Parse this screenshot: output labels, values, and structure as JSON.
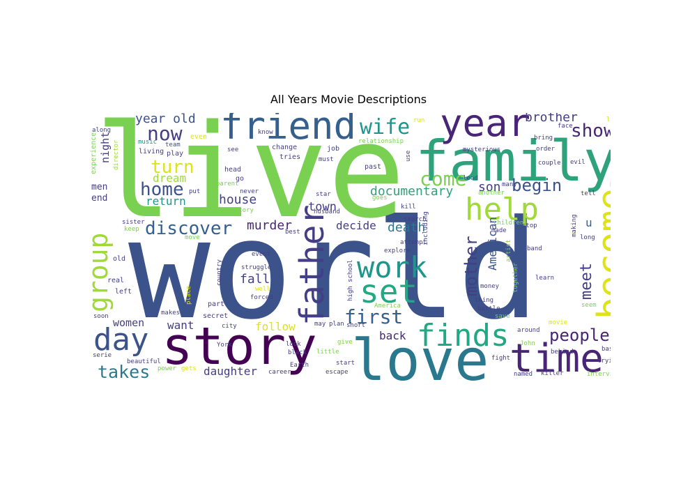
{
  "title": "All Years Movie Descriptions",
  "palette": {
    "green": "#7ad151",
    "lime": "#a0da39",
    "yellow": "#dde318",
    "teal": "#22a884",
    "seagreen": "#2ea37b",
    "cyan": "#1f968b",
    "blue": "#2a788e",
    "steel": "#355f8d",
    "navy": "#3b528b",
    "indigo": "#433e85",
    "purple": "#482576",
    "violet": "#440154"
  },
  "words": [
    {
      "text": "world",
      "rank": 1,
      "color": "navy",
      "orientation": "horizontal"
    },
    {
      "text": "live",
      "rank": 2,
      "color": "green",
      "orientation": "horizontal"
    },
    {
      "text": "love",
      "rank": 3,
      "color": "blue",
      "orientation": "horizontal"
    },
    {
      "text": "family",
      "rank": 4,
      "color": "seagreen",
      "orientation": "horizontal"
    },
    {
      "text": "story",
      "rank": 5,
      "color": "violet",
      "orientation": "horizontal"
    },
    {
      "text": "friend",
      "rank": 6,
      "color": "steel",
      "orientation": "horizontal"
    },
    {
      "text": "time",
      "rank": 7,
      "color": "purple",
      "orientation": "horizontal"
    },
    {
      "text": "year",
      "rank": 8,
      "color": "purple",
      "orientation": "horizontal"
    },
    {
      "text": "father",
      "rank": 9,
      "color": "indigo",
      "orientation": "vertical"
    },
    {
      "text": "become",
      "rank": 10,
      "color": "yellow",
      "orientation": "vertical"
    },
    {
      "text": "help",
      "rank": 11,
      "color": "lime",
      "orientation": "horizontal"
    },
    {
      "text": "finds",
      "rank": 12,
      "color": "teal",
      "orientation": "horizontal"
    },
    {
      "text": "work",
      "rank": 13,
      "color": "cyan",
      "orientation": "horizontal"
    },
    {
      "text": "set",
      "rank": 14,
      "color": "teal",
      "orientation": "horizontal"
    },
    {
      "text": "day",
      "rank": 15,
      "color": "navy",
      "orientation": "horizontal"
    },
    {
      "text": "group",
      "rank": 16,
      "color": "lime",
      "orientation": "vertical"
    },
    {
      "text": "people",
      "rank": 17,
      "color": "purple",
      "orientation": "horizontal"
    },
    {
      "text": "takes",
      "rank": 18,
      "color": "blue",
      "orientation": "horizontal"
    },
    {
      "text": "discover",
      "rank": 19,
      "color": "steel",
      "orientation": "horizontal"
    },
    {
      "text": "home",
      "rank": 20,
      "color": "navy",
      "orientation": "horizontal"
    },
    {
      "text": "first",
      "rank": 21,
      "color": "steel",
      "orientation": "horizontal"
    },
    {
      "text": "show",
      "rank": 22,
      "color": "purple",
      "orientation": "horizontal"
    },
    {
      "text": "wife",
      "rank": 23,
      "color": "cyan",
      "orientation": "horizontal"
    },
    {
      "text": "now",
      "rank": 24,
      "color": "indigo",
      "orientation": "horizontal"
    },
    {
      "text": "turn",
      "rank": 25,
      "color": "yellow",
      "orientation": "horizontal"
    },
    {
      "text": "mother",
      "rank": 26,
      "color": "indigo",
      "orientation": "vertical"
    },
    {
      "text": "come",
      "rank": 27,
      "color": "green",
      "orientation": "horizontal"
    },
    {
      "text": "begin",
      "rank": 28,
      "color": "navy",
      "orientation": "horizontal"
    },
    {
      "text": "meet",
      "rank": 29,
      "color": "indigo",
      "orientation": "vertical"
    },
    {
      "text": "documentary",
      "rank": 30,
      "color": "seagreen",
      "orientation": "horizontal"
    },
    {
      "text": "brother",
      "rank": 31,
      "color": "indigo",
      "orientation": "horizontal"
    },
    {
      "text": "year old",
      "rank": 32,
      "color": "navy",
      "orientation": "horizontal"
    },
    {
      "text": "son",
      "rank": 33,
      "color": "indigo",
      "orientation": "horizontal"
    },
    {
      "text": "murder",
      "rank": 34,
      "color": "purple",
      "orientation": "horizontal"
    },
    {
      "text": "death",
      "rank": 35,
      "color": "blue",
      "orientation": "horizontal"
    },
    {
      "text": "decide",
      "rank": 36,
      "color": "indigo",
      "orientation": "horizontal"
    },
    {
      "text": "house",
      "rank": 37,
      "color": "indigo",
      "orientation": "horizontal"
    },
    {
      "text": "dream",
      "rank": 38,
      "color": "lime",
      "orientation": "horizontal"
    },
    {
      "text": "return",
      "rank": 39,
      "color": "cyan",
      "orientation": "horizontal"
    },
    {
      "text": "town",
      "rank": 40,
      "color": "indigo",
      "orientation": "horizontal"
    },
    {
      "text": "fall",
      "rank": 41,
      "color": "indigo",
      "orientation": "horizontal"
    },
    {
      "text": "women",
      "rank": 42,
      "color": "indigo",
      "orientation": "horizontal"
    },
    {
      "text": "want",
      "rank": 43,
      "color": "indigo",
      "orientation": "horizontal"
    },
    {
      "text": "follow",
      "rank": 44,
      "color": "yellow",
      "orientation": "horizontal"
    },
    {
      "text": "back",
      "rank": 45,
      "color": "purple",
      "orientation": "horizontal"
    },
    {
      "text": "daughter",
      "rank": 46,
      "color": "indigo",
      "orientation": "horizontal"
    },
    {
      "text": "American",
      "rank": 47,
      "color": "navy",
      "orientation": "vertical"
    },
    {
      "text": "night",
      "rank": 48,
      "color": "indigo",
      "orientation": "vertical"
    },
    {
      "text": "men",
      "rank": 49,
      "color": "indigo",
      "orientation": "horizontal"
    },
    {
      "text": "end",
      "rank": 50,
      "color": "indigo",
      "orientation": "horizontal"
    },
    {
      "text": "u",
      "rank": 51,
      "color": "steel",
      "orientation": "horizontal"
    },
    {
      "text": "along",
      "rank": 52,
      "color": "indigo",
      "orientation": "horizontal"
    },
    {
      "text": "music",
      "rank": 53,
      "color": "cyan",
      "orientation": "horizontal"
    },
    {
      "text": "team",
      "rank": 54,
      "color": "navy",
      "orientation": "horizontal"
    },
    {
      "text": "living",
      "rank": 55,
      "color": "indigo",
      "orientation": "horizontal"
    },
    {
      "text": "play",
      "rank": 56,
      "color": "indigo",
      "orientation": "horizontal"
    },
    {
      "text": "experience",
      "rank": 57,
      "color": "green",
      "orientation": "vertical"
    },
    {
      "text": "director",
      "rank": 58,
      "color": "lime",
      "orientation": "vertical"
    },
    {
      "text": "even",
      "rank": 59,
      "color": "yellow",
      "orientation": "horizontal"
    },
    {
      "text": "know",
      "rank": 60,
      "color": "indigo",
      "orientation": "horizontal"
    },
    {
      "text": "relationship",
      "rank": 61,
      "color": "green",
      "orientation": "horizontal"
    },
    {
      "text": "run",
      "rank": 62,
      "color": "yellow",
      "orientation": "horizontal"
    },
    {
      "text": "change",
      "rank": 63,
      "color": "indigo",
      "orientation": "horizontal"
    },
    {
      "text": "tries",
      "rank": 64,
      "color": "indigo",
      "orientation": "horizontal"
    },
    {
      "text": "job",
      "rank": 65,
      "color": "indigo",
      "orientation": "horizontal"
    },
    {
      "text": "must",
      "rank": 66,
      "color": "indigo",
      "orientation": "horizontal"
    },
    {
      "text": "see",
      "rank": 67,
      "color": "indigo",
      "orientation": "horizontal"
    },
    {
      "text": "head",
      "rank": 68,
      "color": "indigo",
      "orientation": "horizontal"
    },
    {
      "text": "go",
      "rank": 69,
      "color": "indigo",
      "orientation": "horizontal"
    },
    {
      "text": "past",
      "rank": 70,
      "color": "indigo",
      "orientation": "horizontal"
    },
    {
      "text": "use",
      "rank": 71,
      "color": "indigo",
      "orientation": "vertical"
    },
    {
      "text": "lead",
      "rank": 72,
      "color": "indigo",
      "orientation": "horizontal"
    },
    {
      "text": "mysterious",
      "rank": 73,
      "color": "indigo",
      "orientation": "horizontal"
    },
    {
      "text": "face",
      "rank": 74,
      "color": "indigo",
      "orientation": "horizontal"
    },
    {
      "text": "leave",
      "rank": 75,
      "color": "yellow",
      "orientation": "horizontal"
    },
    {
      "text": "bring",
      "rank": 76,
      "color": "indigo",
      "orientation": "horizontal"
    },
    {
      "text": "order",
      "rank": 77,
      "color": "indigo",
      "orientation": "horizontal"
    },
    {
      "text": "couple",
      "rank": 78,
      "color": "indigo",
      "orientation": "horizontal"
    },
    {
      "text": "evil",
      "rank": 79,
      "color": "indigo",
      "orientation": "horizontal"
    },
    {
      "text": "tell",
      "rank": 80,
      "color": "indigo",
      "orientation": "horizontal"
    },
    {
      "text": "hope",
      "rank": 81,
      "color": "indigo",
      "orientation": "horizontal"
    },
    {
      "text": "many",
      "rank": 82,
      "color": "indigo",
      "orientation": "horizontal"
    },
    {
      "text": "another",
      "rank": 83,
      "color": "green",
      "orientation": "horizontal"
    },
    {
      "text": "put",
      "rank": 84,
      "color": "indigo",
      "orientation": "horizontal"
    },
    {
      "text": "parent",
      "rank": 85,
      "color": "green",
      "orientation": "horizontal"
    },
    {
      "text": "never",
      "rank": 86,
      "color": "indigo",
      "orientation": "horizontal"
    },
    {
      "text": "star",
      "rank": 87,
      "color": "indigo",
      "orientation": "horizontal"
    },
    {
      "text": "goes",
      "rank": 88,
      "color": "green",
      "orientation": "horizontal"
    },
    {
      "text": "history",
      "rank": 89,
      "color": "green",
      "orientation": "horizontal"
    },
    {
      "text": "husband",
      "rank": 90,
      "color": "indigo",
      "orientation": "horizontal"
    },
    {
      "text": "kill",
      "rank": 91,
      "color": "indigo",
      "orientation": "horizontal"
    },
    {
      "text": "sister",
      "rank": 92,
      "color": "indigo",
      "orientation": "horizontal"
    },
    {
      "text": "keep",
      "rank": 93,
      "color": "green",
      "orientation": "horizontal"
    },
    {
      "text": "best",
      "rank": 94,
      "color": "indigo",
      "orientation": "horizontal"
    },
    {
      "text": "move",
      "rank": 95,
      "color": "green",
      "orientation": "horizontal"
    },
    {
      "text": "including",
      "rank": 96,
      "color": "indigo",
      "orientation": "vertical"
    },
    {
      "text": "made",
      "rank": 97,
      "color": "indigo",
      "orientation": "horizontal"
    },
    {
      "text": "children",
      "rank": 98,
      "color": "green",
      "orientation": "horizontal"
    },
    {
      "text": "stop",
      "rank": 99,
      "color": "indigo",
      "orientation": "horizontal"
    },
    {
      "text": "making",
      "rank": 100,
      "color": "indigo",
      "orientation": "vertical"
    },
    {
      "text": "adventure",
      "rank": 101,
      "color": "lime",
      "orientation": "vertical"
    },
    {
      "text": "search",
      "rank": 102,
      "color": "indigo",
      "orientation": "horizontal"
    },
    {
      "text": "attempt",
      "rank": 103,
      "color": "indigo",
      "orientation": "horizontal"
    },
    {
      "text": "explore",
      "rank": 104,
      "color": "indigo",
      "orientation": "horizontal"
    },
    {
      "text": "event",
      "rank": 105,
      "color": "indigo",
      "orientation": "horizontal"
    },
    {
      "text": "struggle",
      "rank": 106,
      "color": "indigo",
      "orientation": "horizontal"
    },
    {
      "text": "well",
      "rank": 107,
      "color": "yellow",
      "orientation": "horizontal"
    },
    {
      "text": "forced",
      "rank": 108,
      "color": "indigo",
      "orientation": "horizontal"
    },
    {
      "text": "country",
      "rank": 109,
      "color": "indigo",
      "orientation": "vertical"
    },
    {
      "text": "old",
      "rank": 110,
      "color": "indigo",
      "orientation": "horizontal"
    },
    {
      "text": "real",
      "rank": 111,
      "color": "indigo",
      "orientation": "horizontal"
    },
    {
      "text": "left",
      "rank": 112,
      "color": "indigo",
      "orientation": "horizontal"
    },
    {
      "text": "soon",
      "rank": 113,
      "color": "indigo",
      "orientation": "horizontal"
    },
    {
      "text": "makes",
      "rank": 114,
      "color": "indigo",
      "orientation": "horizontal"
    },
    {
      "text": "place",
      "rank": 115,
      "color": "yellow",
      "orientation": "vertical"
    },
    {
      "text": "part",
      "rank": 116,
      "color": "indigo",
      "orientation": "horizontal"
    },
    {
      "text": "secret",
      "rank": 117,
      "color": "indigo",
      "orientation": "horizontal"
    },
    {
      "text": "city",
      "rank": 118,
      "color": "indigo",
      "orientation": "horizontal"
    },
    {
      "text": "high school",
      "rank": 119,
      "color": "indigo",
      "orientation": "vertical"
    },
    {
      "text": "America",
      "rank": 120,
      "color": "green",
      "orientation": "horizontal"
    },
    {
      "text": "may",
      "rank": 121,
      "color": "indigo",
      "orientation": "horizontal"
    },
    {
      "text": "plan",
      "rank": 122,
      "color": "indigo",
      "orientation": "horizontal"
    },
    {
      "text": "short",
      "rank": 123,
      "color": "indigo",
      "orientation": "horizontal"
    },
    {
      "text": "give",
      "rank": 124,
      "color": "green",
      "orientation": "horizontal"
    },
    {
      "text": "look",
      "rank": 125,
      "color": "indigo",
      "orientation": "horizontal"
    },
    {
      "text": "black",
      "rank": 126,
      "color": "indigo",
      "orientation": "horizontal"
    },
    {
      "text": "little",
      "rank": 127,
      "color": "green",
      "orientation": "horizontal"
    },
    {
      "text": "start",
      "rank": 128,
      "color": "indigo",
      "orientation": "horizontal"
    },
    {
      "text": "escape",
      "rank": 129,
      "color": "indigo",
      "orientation": "horizontal"
    },
    {
      "text": "Earth",
      "rank": 130,
      "color": "indigo",
      "orientation": "horizontal"
    },
    {
      "text": "career",
      "rank": 131,
      "color": "indigo",
      "orientation": "horizontal"
    },
    {
      "text": "York",
      "rank": 132,
      "color": "indigo",
      "orientation": "horizontal"
    },
    {
      "text": "artist",
      "rank": 133,
      "color": "green",
      "orientation": "vertical"
    },
    {
      "text": "money",
      "rank": 134,
      "color": "indigo",
      "orientation": "horizontal"
    },
    {
      "text": "thing",
      "rank": 135,
      "color": "indigo",
      "orientation": "horizontal"
    },
    {
      "text": "battle",
      "rank": 136,
      "color": "indigo",
      "orientation": "horizontal"
    },
    {
      "text": "save",
      "rank": 137,
      "color": "green",
      "orientation": "horizontal"
    },
    {
      "text": "together",
      "rank": 138,
      "color": "green",
      "orientation": "vertical"
    },
    {
      "text": "learn",
      "rank": 139,
      "color": "indigo",
      "orientation": "horizontal"
    },
    {
      "text": "band",
      "rank": 140,
      "color": "indigo",
      "orientation": "horizontal"
    },
    {
      "text": "long",
      "rank": 141,
      "color": "indigo",
      "orientation": "horizontal"
    },
    {
      "text": "seem",
      "rank": 142,
      "color": "green",
      "orientation": "horizontal"
    },
    {
      "text": "movie",
      "rank": 143,
      "color": "yellow",
      "orientation": "horizontal"
    },
    {
      "text": "around",
      "rank": 144,
      "color": "indigo",
      "orientation": "horizontal"
    },
    {
      "text": "John",
      "rank": 145,
      "color": "green",
      "orientation": "horizontal"
    },
    {
      "text": "behind",
      "rank": 146,
      "color": "indigo",
      "orientation": "horizontal"
    },
    {
      "text": "based",
      "rank": 147,
      "color": "indigo",
      "orientation": "horizontal"
    },
    {
      "text": "fight",
      "rank": 148,
      "color": "indigo",
      "orientation": "horizontal"
    },
    {
      "text": "trying",
      "rank": 149,
      "color": "indigo",
      "orientation": "horizontal"
    },
    {
      "text": "named",
      "rank": 150,
      "color": "indigo",
      "orientation": "horizontal"
    },
    {
      "text": "killer",
      "rank": 151,
      "color": "indigo",
      "orientation": "horizontal"
    },
    {
      "text": "interview",
      "rank": 152,
      "color": "green",
      "orientation": "horizontal"
    },
    {
      "text": "serie",
      "rank": 153,
      "color": "indigo",
      "orientation": "horizontal"
    },
    {
      "text": "beautiful",
      "rank": 154,
      "color": "indigo",
      "orientation": "horizontal"
    },
    {
      "text": "power",
      "rank": 155,
      "color": "green",
      "orientation": "horizontal"
    },
    {
      "text": "gets",
      "rank": 156,
      "color": "yellow",
      "orientation": "horizontal"
    }
  ]
}
